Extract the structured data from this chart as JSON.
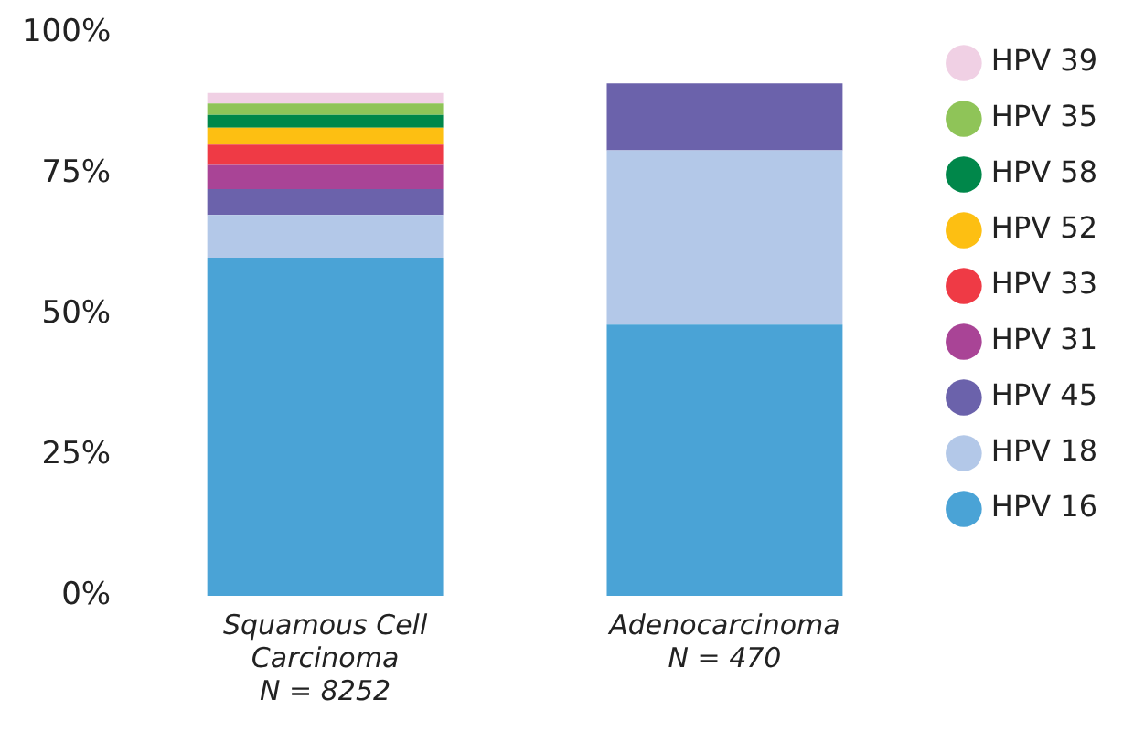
{
  "chart_data": {
    "type": "bar",
    "stacked": true,
    "categories": [
      "Squamous Cell\nCarcinoma\nN = 8252",
      "Adenocarcinoma\nN = 470"
    ],
    "series": [
      {
        "name": "HPV 16",
        "color": "#4aa3d6",
        "values": [
          60.1,
          48.2
        ]
      },
      {
        "name": "HPV 18",
        "color": "#b3c8e8",
        "values": [
          7.6,
          31.0
        ]
      },
      {
        "name": "HPV 45",
        "color": "#6b62ab",
        "values": [
          4.6,
          11.9
        ]
      },
      {
        "name": "HPV 31",
        "color": "#a94496",
        "values": [
          4.3,
          0
        ]
      },
      {
        "name": "HPV 33",
        "color": "#ef3a45",
        "values": [
          3.6,
          0
        ]
      },
      {
        "name": "HPV 52",
        "color": "#fdbf12",
        "values": [
          3.0,
          0
        ]
      },
      {
        "name": "HPV 58",
        "color": "#00874a",
        "values": [
          2.3,
          0
        ]
      },
      {
        "name": "HPV 35",
        "color": "#8fc458",
        "values": [
          2.0,
          0
        ]
      },
      {
        "name": "HPV 39",
        "color": "#f0d0e4",
        "values": [
          1.9,
          0
        ]
      }
    ],
    "ylim": [
      0,
      100
    ],
    "yticks": [
      {
        "value": 0,
        "label": "0%"
      },
      {
        "value": 25,
        "label": "25%"
      },
      {
        "value": 50,
        "label": "50%"
      },
      {
        "value": 75,
        "label": "75%"
      },
      {
        "value": 100,
        "label": "100%"
      }
    ],
    "grid": false,
    "legend": "right"
  }
}
